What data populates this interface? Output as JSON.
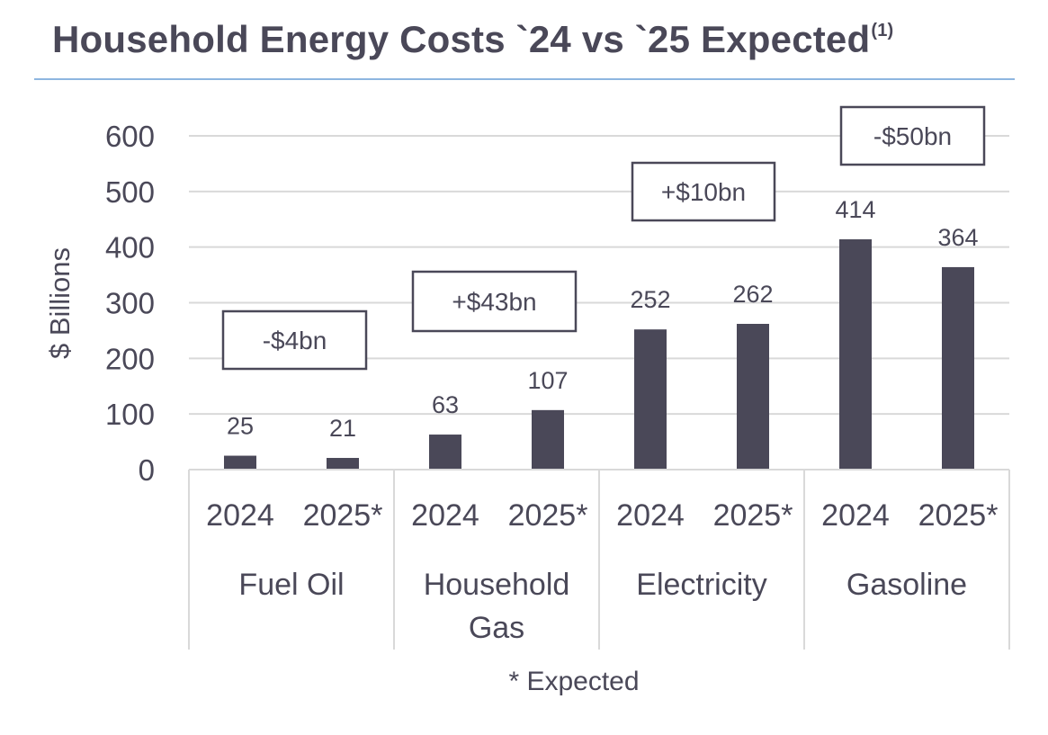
{
  "title": "Household Energy Costs `24 vs `25 Expected",
  "title_superscript": "(1)",
  "footnote": "* Expected",
  "colors": {
    "bar": "#4a4858",
    "text": "#4a4858",
    "grid": "#d9d9d9",
    "title_rule": "#8eb6e0"
  },
  "chart_data": {
    "type": "bar",
    "title": "Household Energy Costs `24 vs `25 Expected",
    "ylabel": "$ Billions",
    "xlabel": "",
    "ylim": [
      0,
      600
    ],
    "yticks": [
      0,
      100,
      200,
      300,
      400,
      500,
      600
    ],
    "grid": true,
    "groups": [
      {
        "name_lines": [
          "Fuel Oil"
        ],
        "delta": "-$4bn",
        "bars": [
          {
            "label": "2024",
            "value": 25
          },
          {
            "label": "2025*",
            "value": 21
          }
        ]
      },
      {
        "name_lines": [
          "Household",
          "Gas"
        ],
        "delta": "+$43bn",
        "bars": [
          {
            "label": "2024",
            "value": 63
          },
          {
            "label": "2025*",
            "value": 107
          }
        ]
      },
      {
        "name_lines": [
          "Electricity"
        ],
        "delta": "+$10bn",
        "bars": [
          {
            "label": "2024",
            "value": 252
          },
          {
            "label": "2025*",
            "value": 262
          }
        ]
      },
      {
        "name_lines": [
          "Gasoline"
        ],
        "delta": "-$50bn",
        "bars": [
          {
            "label": "2024",
            "value": 414
          },
          {
            "label": "2025*",
            "value": 364
          }
        ]
      }
    ]
  }
}
